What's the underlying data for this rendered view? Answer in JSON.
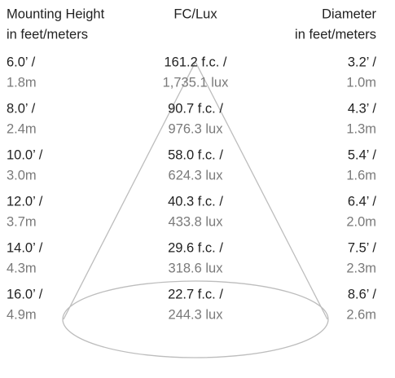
{
  "header": {
    "height": [
      "Mounting Height",
      "in feet/meters"
    ],
    "fc": "FC/Lux",
    "diameter": [
      "Diameter",
      "in feet/meters"
    ]
  },
  "rows": [
    {
      "height": [
        "6.0’ /",
        "1.8m"
      ],
      "fc": [
        "161.2 f.c. /",
        "1,735.1 lux"
      ],
      "diameter": [
        "3.2’ /",
        "1.0m"
      ]
    },
    {
      "height": [
        "8.0’ /",
        "2.4m"
      ],
      "fc": [
        "90.7 f.c. /",
        "976.3 lux"
      ],
      "diameter": [
        "4.3’ /",
        "1.3m"
      ]
    },
    {
      "height": [
        "10.0’ /",
        "3.0m"
      ],
      "fc": [
        "58.0 f.c. /",
        "624.3 lux"
      ],
      "diameter": [
        "5.4’ /",
        "1.6m"
      ]
    },
    {
      "height": [
        "12.0’ /",
        "3.7m"
      ],
      "fc": [
        "40.3 f.c. /",
        "433.8 lux"
      ],
      "diameter": [
        "6.4’ /",
        "2.0m"
      ]
    },
    {
      "height": [
        "14.0’ /",
        "4.3m"
      ],
      "fc": [
        "29.6 f.c. /",
        "318.6 lux"
      ],
      "diameter": [
        "7.5’ /",
        "2.3m"
      ]
    },
    {
      "height": [
        "16.0’ /",
        "4.9m"
      ],
      "fc": [
        "22.7 f.c. /",
        "244.3 lux"
      ],
      "diameter": [
        "8.6’ /",
        "2.6m"
      ]
    }
  ]
}
